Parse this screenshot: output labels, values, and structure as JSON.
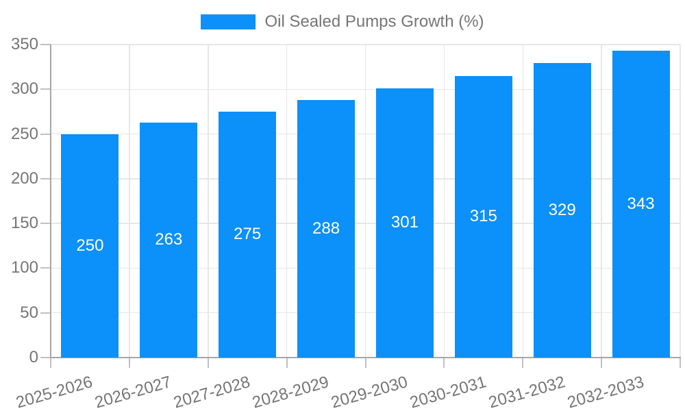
{
  "legend": {
    "position": "top",
    "label": "Oil Sealed Pumps Growth (%)"
  },
  "chart_data": {
    "type": "bar",
    "title": "",
    "categories": [
      "2025-2026",
      "2026-2027",
      "2027-2028",
      "2028-2029",
      "2029-2030",
      "2030-2031",
      "2031-2032",
      "2032-2033"
    ],
    "series": [
      {
        "name": "Oil Sealed Pumps Growth (%)",
        "values": [
          250,
          263,
          275,
          288,
          301,
          315,
          329,
          343
        ]
      }
    ],
    "value_labels": [
      "250",
      "263",
      "275",
      "288",
      "301",
      "315",
      "329",
      "343"
    ],
    "xlabel": "",
    "ylabel": "",
    "ylim": [
      0,
      350
    ],
    "yticks": [
      0,
      50,
      100,
      150,
      200,
      250,
      300,
      350
    ],
    "grid": true,
    "legend_position": "top",
    "x_label_rotation_deg": -16,
    "colors": {
      "bar": "#0c90f9",
      "bar_value_text": "#ffffff",
      "grid": "#e6e6e6",
      "axis": "#a6a6a6",
      "tick": "#c0c0c0",
      "tick_text": "#757575",
      "legend_text": "#757575"
    }
  }
}
